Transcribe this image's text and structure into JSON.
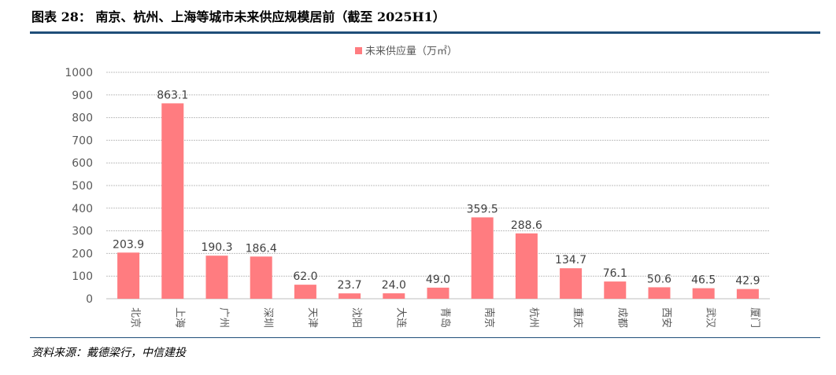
{
  "figure": {
    "title": "图表 28： 南京、杭州、上海等城市未来供应规模居前（截至 2025H1）",
    "source": "资料来源：戴德梁行，中信建投"
  },
  "colors": {
    "bar": "#ff7c80",
    "grid": "#bfbfbf",
    "axis": "#bfbfbf",
    "rule": "#1f4e79"
  },
  "chart_data": {
    "type": "bar",
    "title": "",
    "legend": [
      "未来供应量（万㎡）"
    ],
    "legend_position": "top-center",
    "categories": [
      "北京",
      "上海",
      "广州",
      "深圳",
      "天津",
      "沈阳",
      "大连",
      "青岛",
      "南京",
      "杭州",
      "重庆",
      "成都",
      "西安",
      "武汉",
      "厦门"
    ],
    "series": [
      {
        "name": "未来供应量（万㎡）",
        "values": [
          203.9,
          863.1,
          190.3,
          186.4,
          62.0,
          23.7,
          24.0,
          49.0,
          359.5,
          288.6,
          134.7,
          76.1,
          50.6,
          46.5,
          42.9
        ],
        "labels": [
          "203.9",
          "863.1",
          "190.3",
          "186.4",
          "62.0",
          "23.7",
          "24.0",
          "49.0",
          "359.5",
          "288.6",
          "134.7",
          "76.1",
          "50.6",
          "46.5",
          "42.9"
        ]
      }
    ],
    "xlabel": "",
    "ylabel": "",
    "ylim": [
      0,
      1000
    ],
    "yticks": [
      0,
      100,
      200,
      300,
      400,
      500,
      600,
      700,
      800,
      900,
      1000
    ],
    "grid": true
  }
}
